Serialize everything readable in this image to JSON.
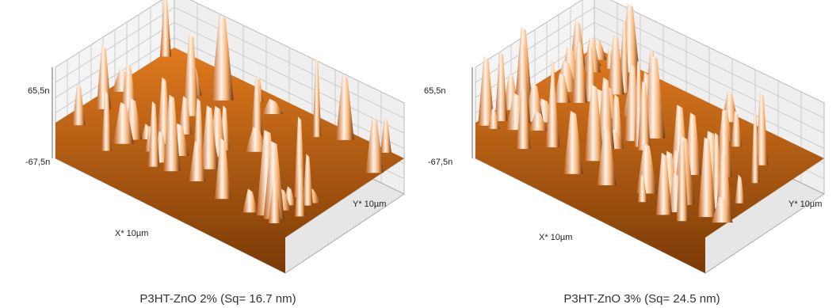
{
  "panels": [
    {
      "z_top": "65,5n",
      "z_bottom": "-67,5n",
      "x_label": "X* 10µm",
      "y_label": "Y* 10µm",
      "caption": "P3HT-ZnO 2% (Sq= 16.7 nm)"
    },
    {
      "z_top": "65,5n",
      "z_bottom": "-67,5n",
      "x_label": "X* 10µm",
      "y_label": "Y* 10µm",
      "caption": "P3HT-ZnO 3% (Sq= 24.5 nm)"
    }
  ]
}
